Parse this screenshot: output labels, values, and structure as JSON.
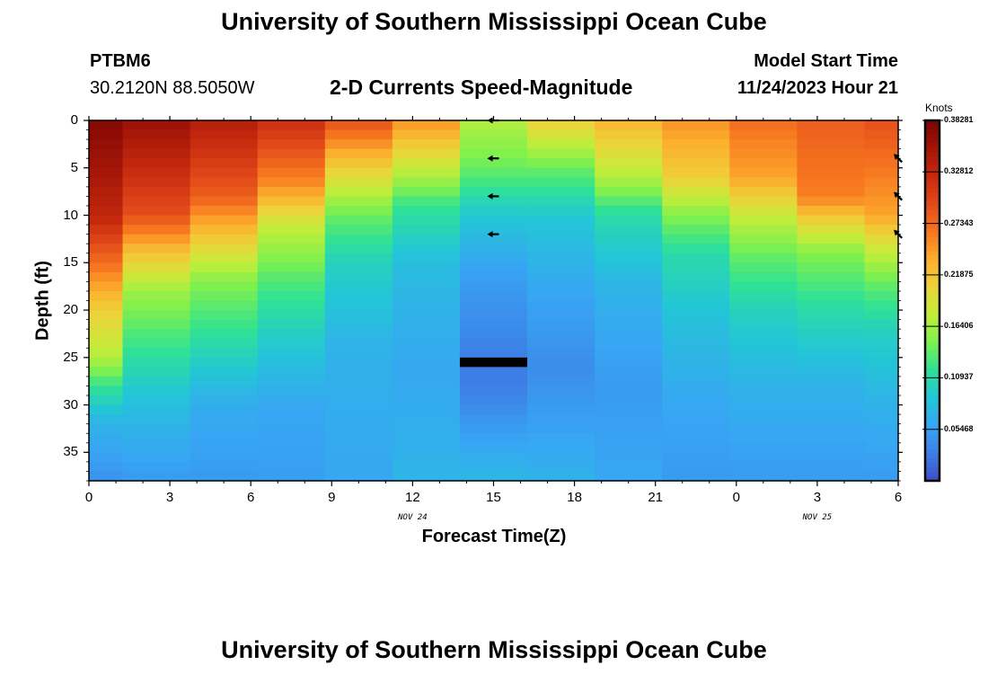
{
  "page": {
    "title_top": "University of Southern Mississippi Ocean Cube",
    "title_bottom": "University of Southern Mississippi Ocean Cube",
    "station": "PTBM6",
    "coords": "30.2120N  88.5050W",
    "model_start_label": "Model Start Time",
    "model_start_value": "11/24/2023 Hour 21"
  },
  "chart_data": {
    "type": "heatmap",
    "title": "2-D Currents Speed-Magnitude",
    "xlabel": "Forecast Time(Z)",
    "ylabel": "Depth (ft)",
    "x_tick_labels": [
      "0",
      "3",
      "6",
      "9",
      "12",
      "15",
      "18",
      "21",
      "0",
      "3",
      "6"
    ],
    "date_labels": [
      {
        "text": "NOV 24",
        "at_tick": 4
      },
      {
        "text": "NOV 25",
        "at_tick": 9
      }
    ],
    "y_ticks": [
      0,
      5,
      10,
      15,
      20,
      25,
      30,
      35
    ],
    "ylim": [
      0,
      38
    ],
    "xlim_hours": [
      0,
      30
    ],
    "forecast_hours": [
      0,
      2.5,
      5,
      7.5,
      10,
      12.5,
      15,
      17.5,
      20,
      22.5,
      25,
      27.5,
      30
    ],
    "depth_bins_ft": [
      0,
      1,
      2,
      3,
      4,
      5,
      6,
      7,
      8,
      9,
      10,
      11,
      12,
      13,
      14,
      15,
      16,
      17,
      18,
      19,
      20,
      21,
      22,
      23,
      24,
      25,
      26,
      27,
      28,
      29,
      30,
      31,
      32,
      33,
      34,
      35,
      36,
      37,
      38
    ],
    "speed_profiles": [
      {
        "hour": 0,
        "points": [
          [
            0,
            0.375
          ],
          [
            10,
            0.33
          ],
          [
            15,
            0.27
          ],
          [
            20,
            0.21
          ],
          [
            25,
            0.17
          ],
          [
            28,
            0.12
          ],
          [
            32,
            0.07
          ],
          [
            38,
            0.045
          ]
        ]
      },
      {
        "hour": 2.5,
        "points": [
          [
            0,
            0.36
          ],
          [
            10,
            0.29
          ],
          [
            14,
            0.22
          ],
          [
            18,
            0.16
          ],
          [
            24,
            0.12
          ],
          [
            30,
            0.08
          ],
          [
            38,
            0.05
          ]
        ]
      },
      {
        "hour": 5,
        "points": [
          [
            0,
            0.34
          ],
          [
            8,
            0.28
          ],
          [
            12,
            0.22
          ],
          [
            17,
            0.15
          ],
          [
            22,
            0.12
          ],
          [
            30,
            0.065
          ],
          [
            38,
            0.05
          ]
        ]
      },
      {
        "hour": 7.5,
        "points": [
          [
            0,
            0.32
          ],
          [
            7,
            0.25
          ],
          [
            11,
            0.18
          ],
          [
            17,
            0.13
          ],
          [
            22,
            0.1
          ],
          [
            30,
            0.06
          ],
          [
            38,
            0.052
          ]
        ]
      },
      {
        "hour": 10,
        "points": [
          [
            0,
            0.29
          ],
          [
            5,
            0.21
          ],
          [
            10,
            0.14
          ],
          [
            15,
            0.1
          ],
          [
            24,
            0.07
          ],
          [
            38,
            0.06
          ]
        ]
      },
      {
        "hour": 12.5,
        "points": [
          [
            0,
            0.25
          ],
          [
            5,
            0.18
          ],
          [
            9,
            0.12
          ],
          [
            15,
            0.08
          ],
          [
            26,
            0.06
          ],
          [
            38,
            0.072
          ]
        ]
      },
      {
        "hour": 15,
        "points": [
          [
            0,
            0.17
          ],
          [
            5,
            0.14
          ],
          [
            10,
            0.09
          ],
          [
            16,
            0.055
          ],
          [
            25,
            0.03
          ],
          [
            28,
            0.028
          ],
          [
            33,
            0.055
          ],
          [
            38,
            0.075
          ]
        ]
      },
      {
        "hour": 17.5,
        "points": [
          [
            0,
            0.21
          ],
          [
            5,
            0.14
          ],
          [
            10,
            0.09
          ],
          [
            18,
            0.06
          ],
          [
            26,
            0.04
          ],
          [
            30,
            0.05
          ],
          [
            38,
            0.07
          ]
        ]
      },
      {
        "hour": 20,
        "points": [
          [
            0,
            0.23
          ],
          [
            6,
            0.17
          ],
          [
            10,
            0.11
          ],
          [
            18,
            0.07
          ],
          [
            28,
            0.05
          ],
          [
            38,
            0.06
          ]
        ]
      },
      {
        "hour": 22.5,
        "points": [
          [
            0,
            0.25
          ],
          [
            6,
            0.21
          ],
          [
            10,
            0.15
          ],
          [
            14,
            0.11
          ],
          [
            22,
            0.08
          ],
          [
            30,
            0.06
          ],
          [
            38,
            0.05
          ]
        ]
      },
      {
        "hour": 25,
        "points": [
          [
            0,
            0.27
          ],
          [
            6,
            0.24
          ],
          [
            10,
            0.18
          ],
          [
            14,
            0.14
          ],
          [
            20,
            0.1
          ],
          [
            28,
            0.07
          ],
          [
            38,
            0.05
          ]
        ]
      },
      {
        "hour": 27.5,
        "points": [
          [
            0,
            0.28
          ],
          [
            8,
            0.26
          ],
          [
            11,
            0.2
          ],
          [
            14,
            0.15
          ],
          [
            20,
            0.11
          ],
          [
            28,
            0.07
          ],
          [
            38,
            0.05
          ]
        ]
      },
      {
        "hour": 30,
        "points": [
          [
            0,
            0.29
          ],
          [
            10,
            0.24
          ],
          [
            13,
            0.19
          ],
          [
            17,
            0.14
          ],
          [
            22,
            0.1
          ],
          [
            30,
            0.07
          ],
          [
            38,
            0.05
          ]
        ]
      }
    ],
    "masked_cells": [
      {
        "hour": 15,
        "depth_from": 25,
        "depth_to": 26
      }
    ],
    "direction_arrows": [
      {
        "hour": 15,
        "depth": 0,
        "direction": "west"
      },
      {
        "hour": 15,
        "depth": 4,
        "direction": "west"
      },
      {
        "hour": 15,
        "depth": 8,
        "direction": "west"
      },
      {
        "hour": 15,
        "depth": 12,
        "direction": "west"
      },
      {
        "hour": 30,
        "depth": 4,
        "direction": "northwest"
      },
      {
        "hour": 30,
        "depth": 8,
        "direction": "northwest"
      },
      {
        "hour": 30,
        "depth": 12,
        "direction": "northwest"
      }
    ],
    "colorbar": {
      "units": "Knots",
      "min": 0,
      "max": 0.38281,
      "tick_labels": [
        "0.38281",
        "0.32812",
        "0.27343",
        "0.21875",
        "0.16406",
        "0.10937",
        "0.05468"
      ],
      "tick_values": [
        0.38281,
        0.32812,
        0.27343,
        0.21875,
        0.16406,
        0.10937,
        0.05468
      ],
      "colors": [
        "#3f4cc6",
        "#3d7fe6",
        "#37a6f3",
        "#23c6d6",
        "#2ee196",
        "#7ef04e",
        "#c3ed3a",
        "#ecd33a",
        "#fcae2d",
        "#f6751f",
        "#e2491a",
        "#c62a0e",
        "#a21508",
        "#7a0403"
      ]
    }
  }
}
